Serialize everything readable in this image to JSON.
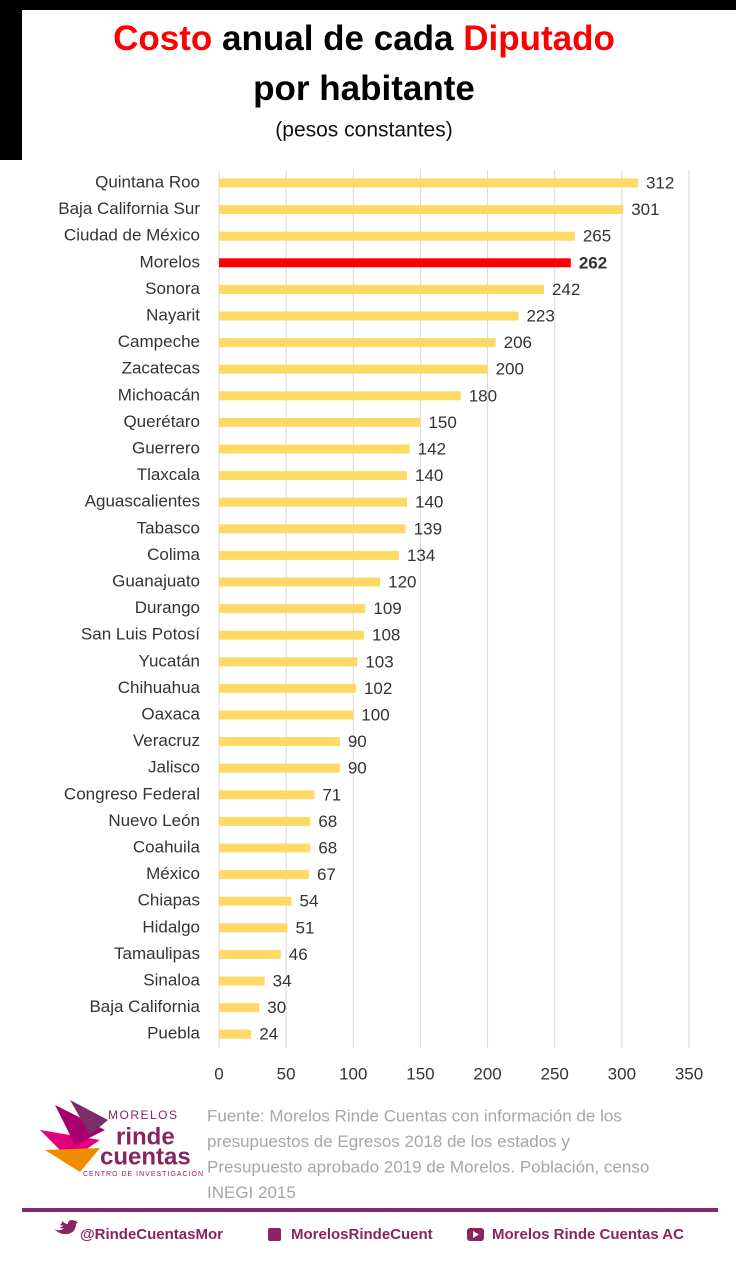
{
  "chart_data": {
    "type": "barh",
    "title_parts": [
      "Costo",
      "anual de cada",
      "Diputado",
      "por habitante"
    ],
    "title_colors": [
      "#ff0000",
      "#000000",
      "#ff0000",
      "#000000"
    ],
    "subtitle": "(pesos constantes)",
    "categories": [
      "Quintana Roo",
      "Baja California Sur",
      "Ciudad de México",
      "Morelos",
      "Sonora",
      "Nayarit",
      "Campeche",
      "Zacatecas",
      "Michoacán",
      "Querétaro",
      "Guerrero",
      "Tlaxcala",
      "Aguascalientes",
      "Tabasco",
      "Colima",
      "Guanajuato",
      "Durango",
      "San Luis Potosí",
      "Yucatán",
      "Chihuahua",
      "Oaxaca",
      "Veracruz",
      "Jalisco",
      "Congreso Federal",
      "Nuevo León",
      "Coahuila",
      "México",
      "Chiapas",
      "Hidalgo",
      "Tamaulipas",
      "Sinaloa",
      "Baja California",
      "Puebla"
    ],
    "values": [
      312,
      301,
      265,
      262,
      242,
      223,
      206,
      200,
      180,
      150,
      142,
      140,
      140,
      139,
      134,
      120,
      109,
      108,
      103,
      102,
      100,
      90,
      90,
      71,
      68,
      68,
      67,
      54,
      51,
      46,
      34,
      30,
      24
    ],
    "colors": [
      "#ffd966",
      "#ffd966",
      "#ffd966",
      "#ff0000",
      "#ffd966",
      "#ffd966",
      "#ffd966",
      "#ffd966",
      "#ffd966",
      "#ffd966",
      "#ffd966",
      "#ffd966",
      "#ffd966",
      "#ffd966",
      "#ffd966",
      "#ffd966",
      "#ffd966",
      "#ffd966",
      "#ffd966",
      "#ffd966",
      "#ffd966",
      "#ffd966",
      "#ffd966",
      "#ffd966",
      "#ffd966",
      "#ffd966",
      "#ffd966",
      "#ffd966",
      "#ffd966",
      "#ffd966",
      "#ffd966",
      "#ffd966",
      "#ffd966"
    ],
    "xlim": [
      0,
      350
    ],
    "xticks": [
      0,
      50,
      100,
      150,
      200,
      250,
      300,
      350
    ],
    "grid": true
  },
  "logo": {
    "top": "MORELOS",
    "word1": "rinde",
    "word2": "cuentas",
    "tagline": "CENTRO DE INVESTIGACIÓN"
  },
  "source_lines": [
    "Fuente: Morelos Rinde Cuentas con información de los",
    "presupuestos de Egresos 2018 de los estados y",
    "Presupuesto aprobado 2019 de Morelos. Población, censo",
    "INEGI 2015"
  ],
  "social": [
    "@RindeCuentasMor",
    "MorelosRindeCuent",
    "Morelos Rinde Cuentas AC"
  ]
}
